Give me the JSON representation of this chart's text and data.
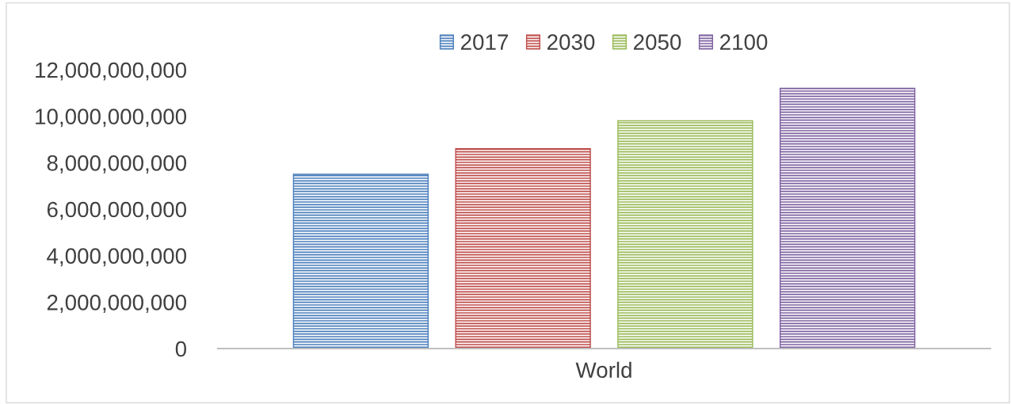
{
  "chart_data": {
    "type": "bar",
    "categories": [
      "World"
    ],
    "series": [
      {
        "name": "2017",
        "color": "#4a7ebb",
        "values": [
          7500000000
        ]
      },
      {
        "name": "2030",
        "color": "#be4b48",
        "values": [
          8600000000
        ]
      },
      {
        "name": "2050",
        "color": "#98b954",
        "values": [
          9800000000
        ]
      },
      {
        "name": "2100",
        "color": "#7d60a0",
        "values": [
          11200000000
        ]
      }
    ],
    "ylim": [
      0,
      12000000000
    ],
    "yticks": [
      {
        "value": 0,
        "label": "0"
      },
      {
        "value": 2000000000,
        "label": "2,000,000,000"
      },
      {
        "value": 4000000000,
        "label": "4,000,000,000"
      },
      {
        "value": 6000000000,
        "label": "6,000,000,000"
      },
      {
        "value": 8000000000,
        "label": "8,000,000,000"
      },
      {
        "value": 10000000000,
        "label": "10,000,000,000"
      },
      {
        "value": 12000000000,
        "label": "12,000,000,000"
      }
    ],
    "grid": false,
    "legend": "top"
  }
}
